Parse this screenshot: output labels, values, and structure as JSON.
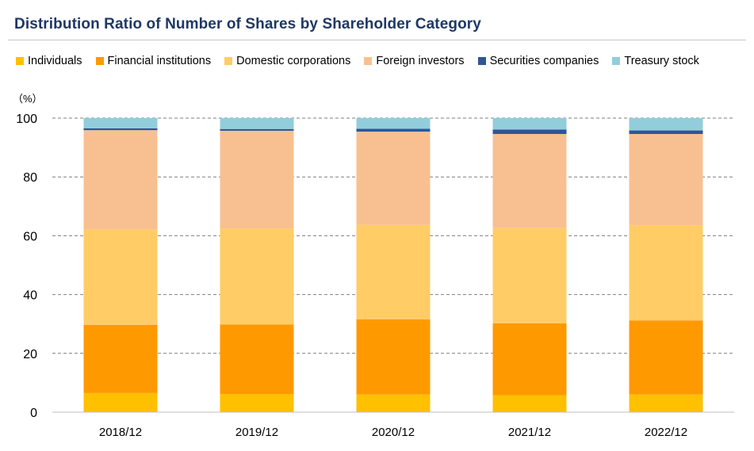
{
  "chart_data": {
    "type": "bar",
    "stacked": true,
    "title": "Distribution Ratio of Number of Shares by Shareholder Category",
    "unit_label": "（%）",
    "categories": [
      "2018/12",
      "2019/12",
      "2020/12",
      "2021/12",
      "2022/12"
    ],
    "ylim": [
      0,
      100
    ],
    "yticks": [
      "0",
      "20",
      "40",
      "60",
      "80",
      "100"
    ],
    "grid": true,
    "legend_position": "top",
    "series": [
      {
        "name": "Individuals",
        "color": "#ffc000",
        "values": [
          6.5,
          6.2,
          6.0,
          5.8,
          6.0
        ]
      },
      {
        "name": "Financial institutions",
        "color": "#ff9900",
        "values": [
          23.2,
          23.6,
          25.6,
          24.4,
          25.2
        ]
      },
      {
        "name": "Domestic corporations",
        "color": "#ffcc66",
        "values": [
          32.5,
          32.7,
          32.1,
          32.4,
          32.4
        ]
      },
      {
        "name": "Foreign investors",
        "color": "#f8c090",
        "values": [
          33.7,
          33.2,
          31.7,
          32.0,
          31.0
        ]
      },
      {
        "name": "Securities companies",
        "color": "#2f5597",
        "values": [
          0.6,
          0.6,
          1.0,
          1.5,
          1.2
        ]
      },
      {
        "name": "Treasury stock",
        "color": "#92cddc",
        "values": [
          3.5,
          3.7,
          3.6,
          3.9,
          4.2
        ]
      }
    ]
  }
}
